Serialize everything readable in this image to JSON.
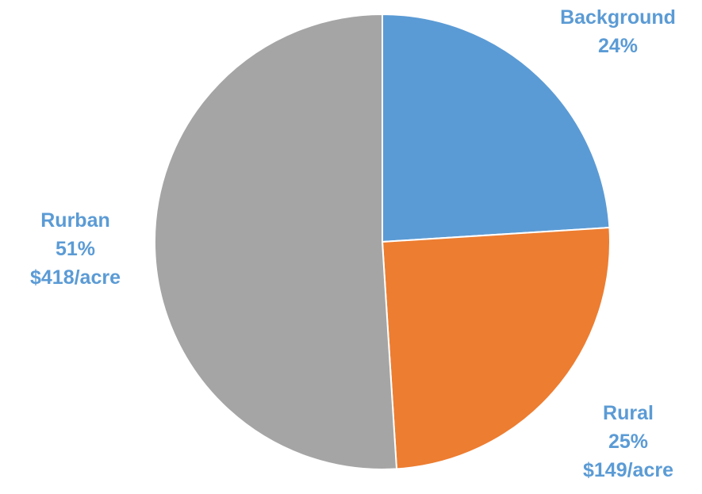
{
  "chart_data": {
    "type": "pie",
    "title": "",
    "label_color": "#5b9bd5",
    "slices": [
      {
        "name": "Background",
        "percent": 24,
        "percent_label": "24%",
        "extra": "",
        "color": "#5b9bd5"
      },
      {
        "name": "Rural",
        "percent": 25,
        "percent_label": "25%",
        "extra": "$149/acre",
        "color": "#ed7d31"
      },
      {
        "name": "Rurban",
        "percent": 51,
        "percent_label": "51%",
        "extra": "$418/acre",
        "color": "#a5a5a5"
      }
    ],
    "start_angle_deg": 0,
    "direction": "clockwise",
    "legend": "none"
  }
}
